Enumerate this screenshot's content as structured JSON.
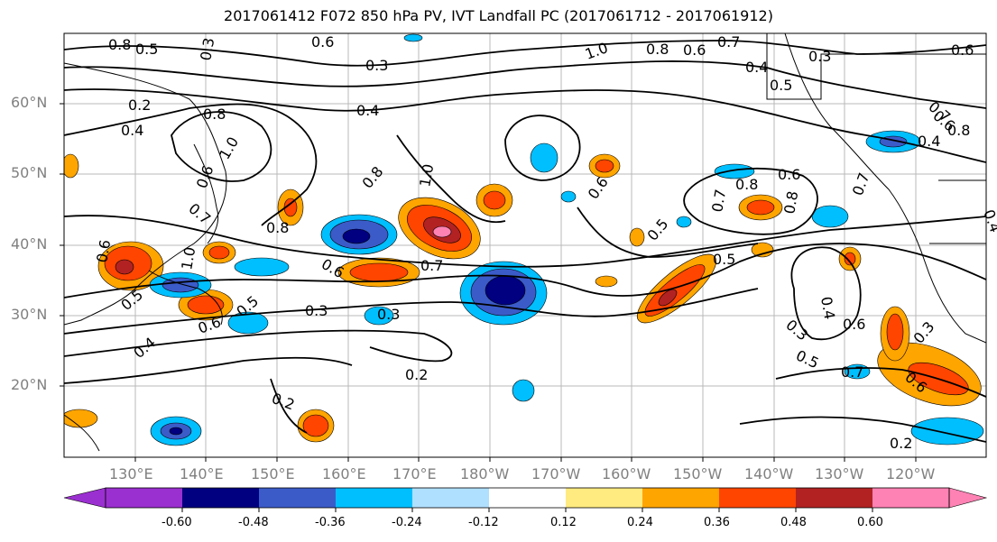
{
  "title": "2017061412 F072 850 hPa PV, IVT Landfall PC (2017061712 - 2017061912)",
  "lat_labels": [
    "60°N",
    "50°N",
    "40°N",
    "30°N",
    "20°N"
  ],
  "lon_labels": [
    "130°E",
    "140°E",
    "150°E",
    "160°E",
    "170°E",
    "180°W",
    "170°W",
    "160°W",
    "150°W",
    "140°W",
    "130°W",
    "120°W"
  ],
  "contour_labels": [
    "0.3",
    "0.6",
    "1.0",
    "0.8",
    "0.6",
    "0.7",
    "0.4",
    "0.3",
    "0.6",
    "0.2",
    "0.4",
    "0.8",
    "1.0",
    "0.8",
    "0.4",
    "0.3",
    "0.5",
    "0.6",
    "0.7",
    "0.8",
    "0.4",
    "0.8",
    "0.6",
    "0.8",
    "1.0",
    "0.6",
    "0.7",
    "0.8",
    "0.6",
    "1.0",
    "0.5",
    "0.5",
    "0.6",
    "0.7",
    "0.7",
    "0.3",
    "0.5",
    "0.4",
    "0.3",
    "0.6",
    "0.3",
    "0.5",
    "0.7",
    "0.6",
    "0.3",
    "0.6",
    "0.2",
    "0.2",
    "0.2",
    "0.4",
    "0.5",
    "0.4",
    "0.6",
    "0.7",
    "0.5",
    "0.8"
  ],
  "colorbar": {
    "colors": [
      "#9b30d0",
      "#000080",
      "#3b5bc8",
      "#00bfff",
      "#b0e0ff",
      "#ffffff",
      "#ffeb80",
      "#ffa500",
      "#ff4500",
      "#b22222",
      "#ff82b4"
    ],
    "tick_labels": [
      "-0.60",
      "-0.48",
      "-0.36",
      "-0.24",
      "-0.12",
      "0.12",
      "0.24",
      "0.36",
      "0.48",
      "0.60"
    ]
  }
}
